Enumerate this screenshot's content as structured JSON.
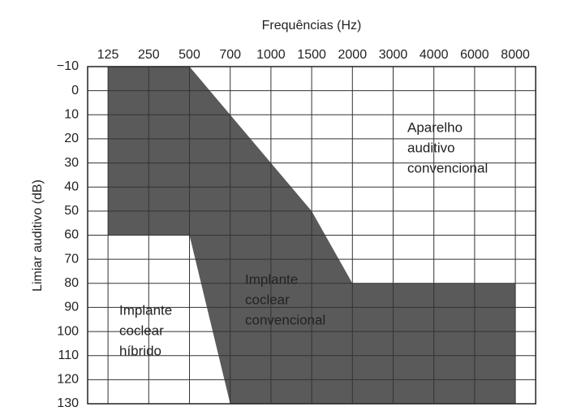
{
  "chart_data": {
    "type": "region",
    "x_label": "Frequências (Hz)",
    "y_label": "Limiar auditivo (dB)",
    "categories": [
      "125",
      "250",
      "500",
      "700",
      "1000",
      "1500",
      "2000",
      "3000",
      "4000",
      "6000",
      "8000"
    ],
    "ylim": [
      -10,
      130
    ],
    "y_inverted": true,
    "yticks": [
      {
        "value": -10,
        "label": "−10"
      },
      0,
      10,
      20,
      30,
      40,
      50,
      60,
      70,
      80,
      90,
      100,
      110,
      120,
      130
    ],
    "grid": true,
    "series": [
      {
        "color": "#5a5a5a",
        "x": [
          "125",
          "500",
          "1500",
          "2000",
          "8000",
          "8000",
          "700",
          "500",
          "125"
        ],
        "values": [
          -10,
          -10,
          50,
          80,
          80,
          130,
          130,
          60,
          60
        ]
      }
    ],
    "annotations": [
      {
        "lines": [
          "Aparelho",
          "auditivo",
          "convencional"
        ]
      },
      {
        "lines": [
          "Implante",
          "coclear",
          "convencional"
        ]
      },
      {
        "lines": [
          "Implante",
          "coclear",
          "híbrido"
        ]
      }
    ]
  }
}
